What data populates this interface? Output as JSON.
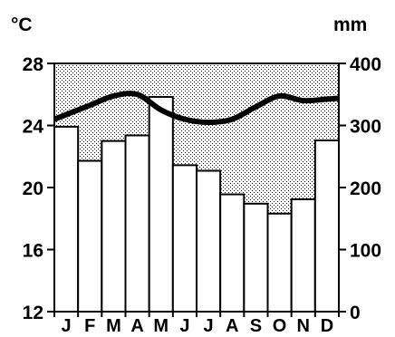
{
  "chart_data": {
    "type": "bar",
    "categories": [
      "J",
      "F",
      "M",
      "A",
      "M",
      "J",
      "J",
      "A",
      "S",
      "O",
      "N",
      "D"
    ],
    "series": [
      {
        "name": "precipitation",
        "kind": "bar",
        "axis": "right",
        "values": [
          298,
          243,
          275,
          284,
          346,
          236,
          227,
          189,
          174,
          158,
          181,
          276
        ]
      },
      {
        "name": "temperature",
        "kind": "line",
        "axis": "left",
        "values": [
          24.7,
          25.3,
          25.9,
          26.0,
          25.0,
          24.4,
          24.2,
          24.4,
          25.2,
          25.9,
          25.6,
          25.7
        ]
      }
    ],
    "y_left": {
      "unit": "°C",
      "lim": [
        12,
        28
      ],
      "ticks": [
        "12",
        "16",
        "20",
        "24",
        "28"
      ]
    },
    "y_right": {
      "unit": "mm",
      "lim": [
        0,
        400
      ],
      "ticks": [
        "0",
        "100",
        "200",
        "300",
        "400"
      ]
    },
    "shading": "dotted area between bar tops and top of plot"
  }
}
